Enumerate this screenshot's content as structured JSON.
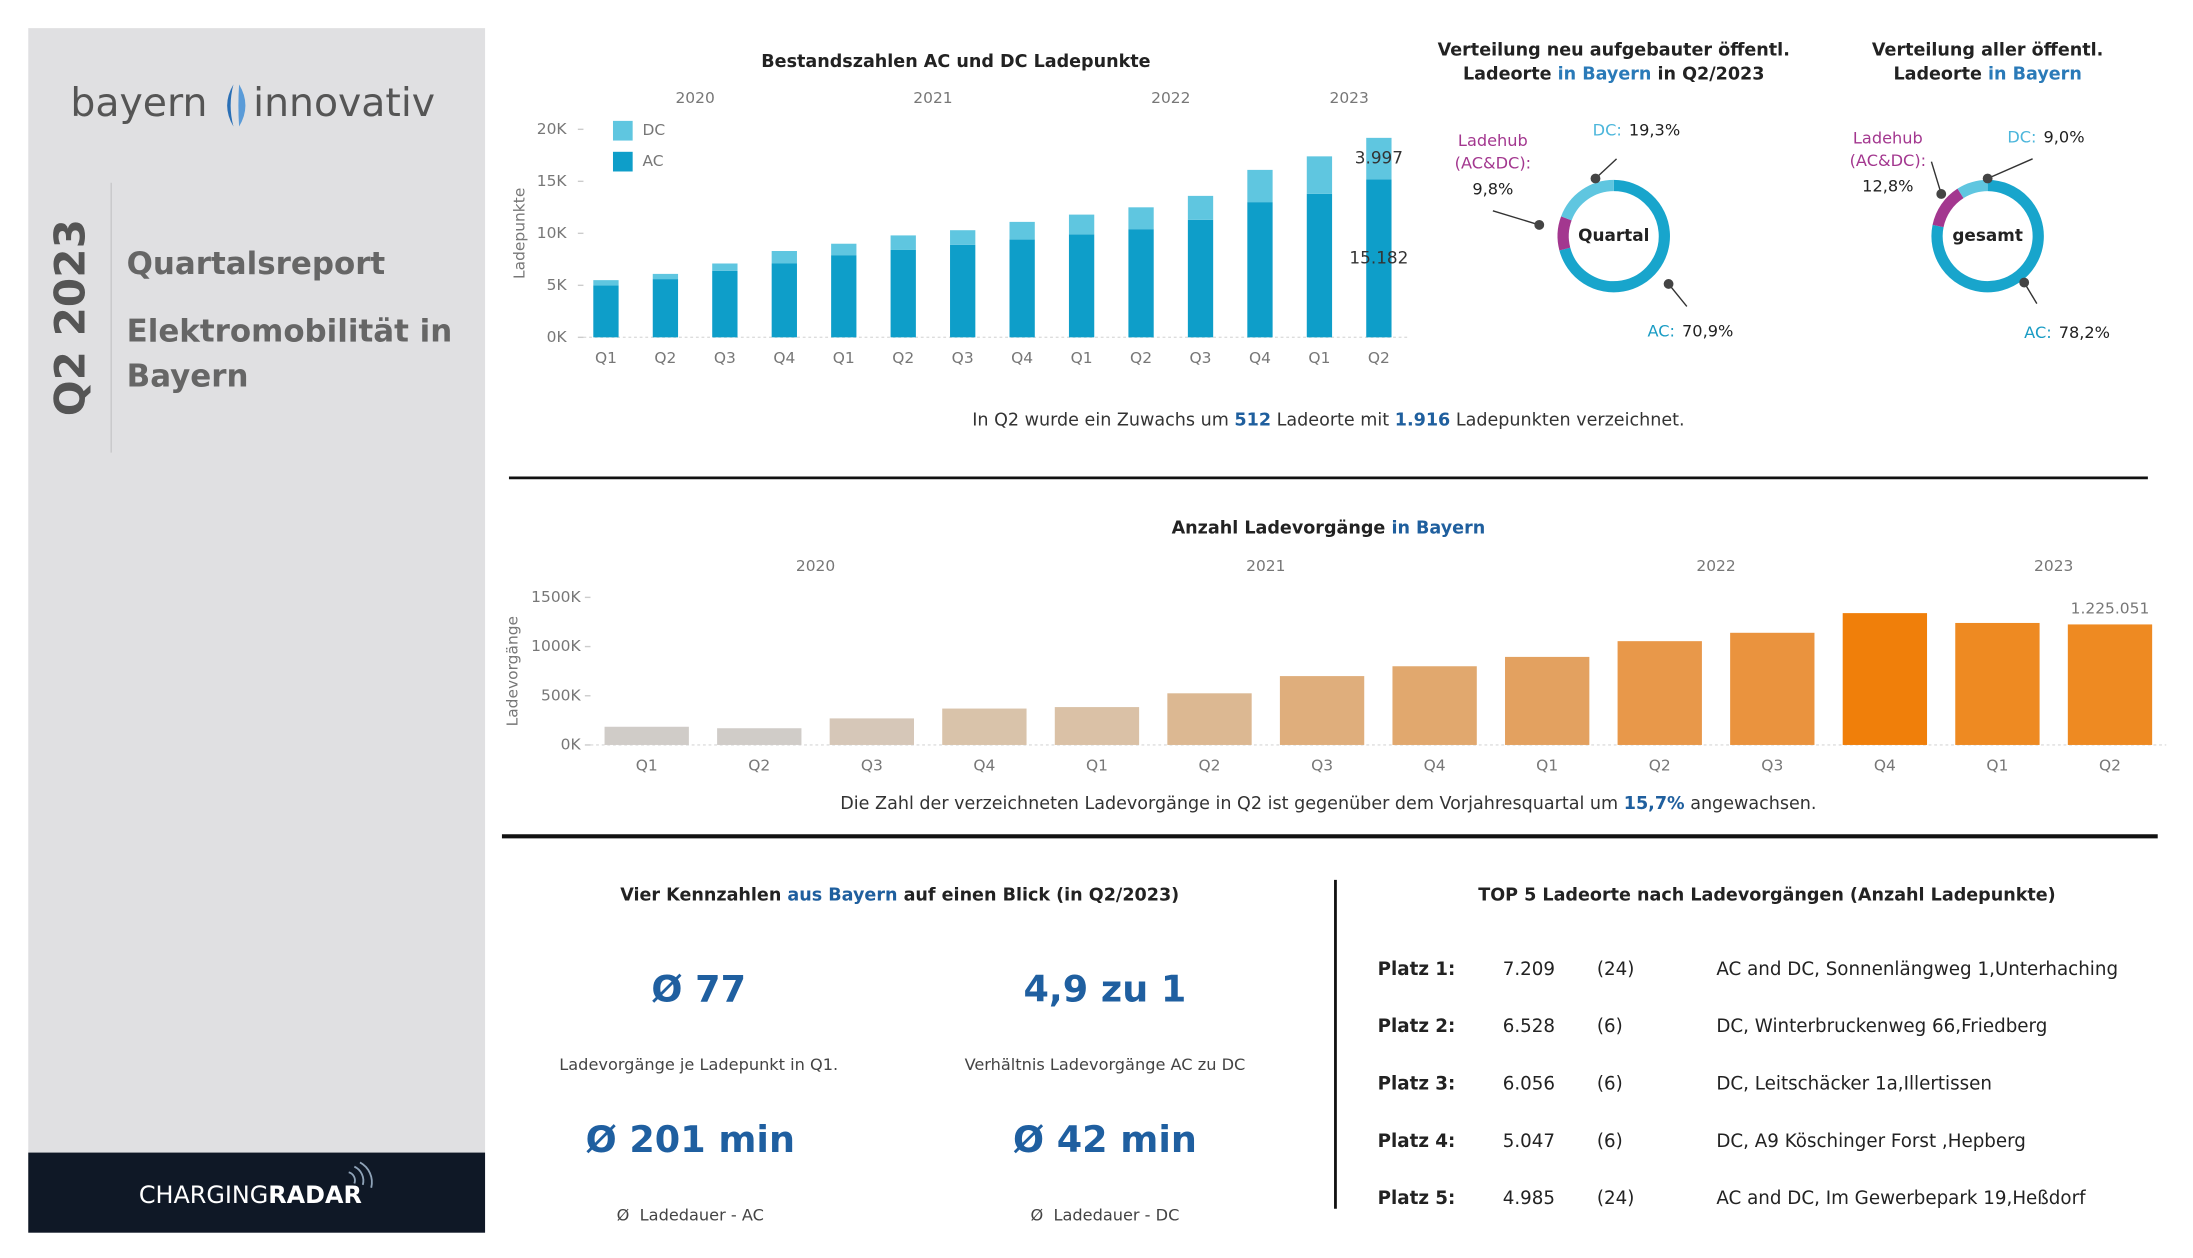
{
  "sidebar": {
    "logo": [
      "bayern",
      "innovativ"
    ],
    "period": "Q2 2023",
    "title": "Quartalsreport",
    "subtitle_lines": [
      "Elektromobilität in",
      "Bayern"
    ],
    "footer": [
      "CHARGING",
      "RADAR"
    ]
  },
  "chart_data": [
    {
      "type": "stacked_bar",
      "title": [
        {
          "text": "Bestandszahlen AC und DC Ladepunkte"
        }
      ],
      "y_label": "Ladepunkte",
      "groups": [
        {
          "label": "2020",
          "categories": [
            "Q1",
            "Q2",
            "Q3",
            "Q4"
          ]
        },
        {
          "label": "2021",
          "categories": [
            "Q1",
            "Q2",
            "Q3",
            "Q4"
          ]
        },
        {
          "label": "2022",
          "categories": [
            "Q1",
            "Q2",
            "Q3",
            "Q4"
          ]
        },
        {
          "label": "2023",
          "categories": [
            "Q1",
            "Q2"
          ]
        }
      ],
      "series": [
        {
          "name": "AC",
          "color": "#0e9ec9",
          "values": [
            5000,
            5600,
            6400,
            7100,
            7900,
            8400,
            8900,
            9400,
            9900,
            10400,
            11300,
            13000,
            13800,
            15182
          ],
          "value_labels": [
            null,
            null,
            null,
            null,
            null,
            null,
            null,
            null,
            null,
            null,
            null,
            null,
            null,
            "15.182"
          ]
        },
        {
          "name": "DC",
          "color": "#5fc6e0",
          "values": [
            500,
            500,
            700,
            1200,
            1100,
            1400,
            1400,
            1700,
            1900,
            2100,
            2300,
            3100,
            3600,
            3997
          ],
          "value_labels": [
            null,
            null,
            null,
            null,
            null,
            null,
            null,
            null,
            null,
            null,
            null,
            null,
            null,
            "3.997"
          ]
        }
      ],
      "ylim": [
        0,
        20000
      ],
      "yticks": [
        {
          "value": 0,
          "label": "0K"
        },
        {
          "value": 5000,
          "label": "5K"
        },
        {
          "value": 10000,
          "label": "10K"
        },
        {
          "value": 15000,
          "label": "15K"
        },
        {
          "value": 20000,
          "label": "20K"
        }
      ],
      "legend": "top-left",
      "note": [
        {
          "text": "In Q2 wurde ein Zuwachs um "
        },
        {
          "text": "512",
          "color": "#1f5f9e"
        },
        {
          "text": " Ladeorte mit "
        },
        {
          "text": "1.916",
          "color": "#1f5f9e"
        },
        {
          "text": " Ladepunkten verzeichnet."
        }
      ]
    },
    {
      "type": "bar",
      "title": [
        {
          "text": "Anzahl Ladevorgänge "
        },
        {
          "text": "in Bayern",
          "color": "#1f5f9e"
        }
      ],
      "y_label": "Ladevorgänge",
      "groups": [
        {
          "label": "2020",
          "categories": [
            "Q1",
            "Q2",
            "Q3",
            "Q4"
          ]
        },
        {
          "label": "2021",
          "categories": [
            "Q1",
            "Q2",
            "Q3",
            "Q4"
          ]
        },
        {
          "label": "2022",
          "categories": [
            "Q1",
            "Q2",
            "Q3",
            "Q4"
          ]
        },
        {
          "label": "2023",
          "categories": [
            "Q1",
            "Q2"
          ]
        }
      ],
      "values": [
        185000,
        170000,
        270000,
        370000,
        385000,
        525000,
        700000,
        800000,
        895000,
        1055000,
        1140000,
        1340000,
        1240000,
        1225051
      ],
      "value_labels": [
        null,
        null,
        null,
        null,
        null,
        null,
        null,
        null,
        null,
        null,
        null,
        null,
        null,
        "1.225.051"
      ],
      "colors": [
        "#d0ccc8",
        "#d0ccc8",
        "#d6c7b8",
        "#d9c3aa",
        "#dac1a6",
        "#dcb892",
        "#dfae7c",
        "#e1a86e",
        "#e3a160",
        "#e8984a",
        "#ea933e",
        "#f07f0a",
        "#ee8a22",
        "#ee8a22"
      ],
      "ylim": [
        0,
        1500000
      ],
      "yticks": [
        {
          "value": 0,
          "label": "0K"
        },
        {
          "value": 500000,
          "label": "500K"
        },
        {
          "value": 1000000,
          "label": "1000K"
        },
        {
          "value": 1500000,
          "label": "1500K"
        }
      ],
      "note": [
        {
          "text": "Die Zahl der verzeichneten Ladevorgänge in Q2 ist gegenüber dem Vorjahresquartal um "
        },
        {
          "text": "15,7%",
          "color": "#1f5f9e"
        },
        {
          "text": " angewachsen."
        }
      ]
    },
    {
      "type": "donut",
      "title_lines": [
        [
          {
            "text": "Verteilung neu aufgebauter öffentl."
          }
        ],
        [
          {
            "text": "Ladeorte "
          },
          {
            "text": "in Bayern",
            "color": "#2a7ab8"
          },
          {
            "text": " in Q2/2023"
          }
        ]
      ],
      "center_label": "Quartal",
      "categories": [
        "AC:",
        "Ladehub (AC&DC):",
        "DC:"
      ],
      "values": [
        70.9,
        9.8,
        19.3
      ],
      "value_labels": [
        "70,9%",
        "9,8%",
        "19,3%"
      ],
      "colors": [
        "#18a5cc",
        "#a3378f",
        "#5fc6e0"
      ]
    },
    {
      "type": "donut",
      "title_lines": [
        [
          {
            "text": "Verteilung aller öffentl."
          }
        ],
        [
          {
            "text": "Ladeorte "
          },
          {
            "text": "in Bayern",
            "color": "#2a7ab8"
          }
        ]
      ],
      "center_label": "gesamt",
      "categories": [
        "AC:",
        "Ladehub (AC&DC):",
        "DC:"
      ],
      "values": [
        78.2,
        12.8,
        9.0
      ],
      "value_labels": [
        "78,2%",
        "12,8%",
        "9,0%"
      ],
      "colors": [
        "#18a5cc",
        "#a3378f",
        "#5fc6e0"
      ]
    }
  ],
  "kpis": {
    "title": [
      {
        "text": "Vier Kennzahlen "
      },
      {
        "text": "aus Bayern",
        "color": "#1f5f9e"
      },
      {
        "text": " auf einen Blick (in Q2/2023)"
      }
    ],
    "items": [
      {
        "value": "Ø 77",
        "label": "Ladevorgänge je Ladepunkt in Q1."
      },
      {
        "value": "4,9 zu 1",
        "label": "Verhältnis Ladevorgänge AC zu DC"
      },
      {
        "value": "Ø 201 min",
        "label": "Ø  Ladedauer - AC"
      },
      {
        "value": "Ø 42 min",
        "label": "Ø  Ladedauer - DC"
      }
    ]
  },
  "top5": {
    "title": [
      {
        "text": "TOP 5 Ladeorte nach Ladevorgängen (Anzahl Ladepunkte)"
      }
    ],
    "rows": [
      [
        "Platz 1:",
        "7.209",
        "(24)",
        "AC and DC, Sonnenlängweg 1,Unterhaching"
      ],
      [
        "Platz 2:",
        "6.528",
        "(6)",
        "DC, Winterbruckenweg 66,Friedberg"
      ],
      [
        "Platz 3:",
        "6.056",
        "(6)",
        "DC, Leitschäcker 1a,Illertissen"
      ],
      [
        "Platz 4:",
        "5.047",
        "(6)",
        "DC, A9 Köschinger Forst ,Hepberg"
      ],
      [
        "Platz 5:",
        "4.985",
        "(24)",
        "AC and DC, Im Gewerbepark 19,Heßdorf"
      ]
    ]
  }
}
